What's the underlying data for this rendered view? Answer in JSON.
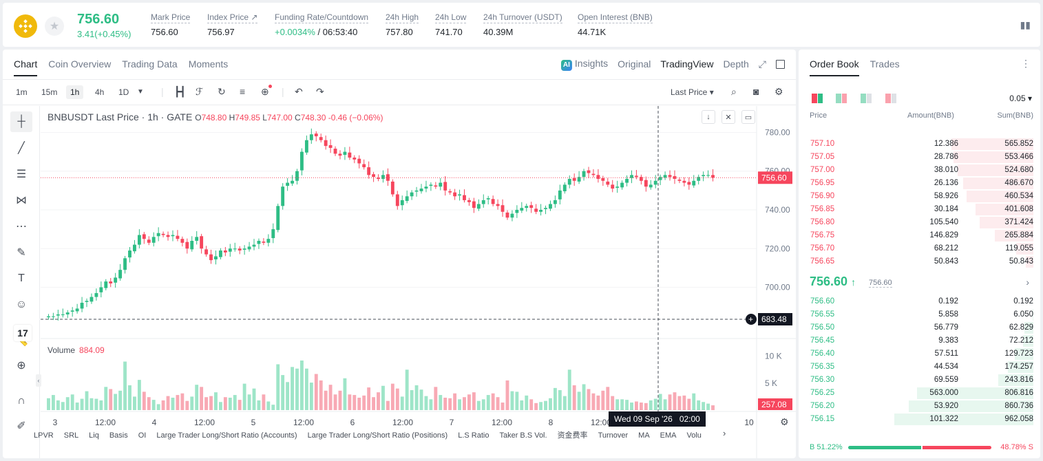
{
  "ticker": {
    "last_price": "756.60",
    "change": "3.41(+0.45%)",
    "stats": [
      {
        "label": "Mark Price",
        "value": "756.60"
      },
      {
        "label": "Index Price ↗",
        "value": "756.97"
      },
      {
        "label": "Funding Rate/Countdown",
        "value": "+0.0034%",
        "value2": " / 06:53:40"
      },
      {
        "label": "24h High",
        "value": "757.80"
      },
      {
        "label": "24h Low",
        "value": "741.70"
      },
      {
        "label": "24h Turnover (USDT)",
        "value": "40.39M"
      },
      {
        "label": "Open Interest (BNB)",
        "value": "44.71K"
      }
    ]
  },
  "chart_tabs": [
    "Chart",
    "Coin Overview",
    "Trading Data",
    "Moments"
  ],
  "chart_views": {
    "ai": "AI",
    "insights": "Insights",
    "original": "Original",
    "tradingview": "TradingView",
    "depth": "Depth"
  },
  "timeframes": [
    "1m",
    "15m",
    "1h",
    "4h",
    "1D"
  ],
  "last_price_select": "Last Price",
  "legend": {
    "symbol": "BNBUSDT Last Price · 1h · GATE",
    "o": "748.80",
    "h": "749.85",
    "l": "747.00",
    "c": "748.30",
    "chg": "-0.46 (−0.06%)"
  },
  "volume_legend": {
    "label": "Volume",
    "value": "884.09"
  },
  "crosshair": {
    "date": "Wed 09 Sep '26",
    "time": "02:00"
  },
  "indicators": [
    "LPVR",
    "SRL",
    "Liq",
    "Basis",
    "OI",
    "Large Trader Long/Short Ratio (Accounts)",
    "Large Trader Long/Short Ratio (Positions)",
    "L.S Ratio",
    "Taker B.S Vol.",
    "资金费率",
    "Turnover",
    "MA",
    "EMA",
    "Volu"
  ],
  "chart_data": {
    "type": "candlestick",
    "y_ticks": [
      "780.00",
      "760.00",
      "740.00",
      "720.00",
      "700.00"
    ],
    "ylim": [
      683.48,
      783
    ],
    "volume_ticks": [
      "10 K",
      "5 K"
    ],
    "x_ticks": [
      "3",
      "12:00",
      "4",
      "12:00",
      "5",
      "12:00",
      "6",
      "12:00",
      "7",
      "12:00",
      "8",
      "12:00",
      "10"
    ],
    "price_label": "756.60",
    "cross_price_label": "683.48",
    "volume_label": "257.08",
    "close_series": [
      685,
      685,
      686,
      686,
      687,
      688,
      689,
      692,
      693,
      695,
      697,
      700,
      703,
      702,
      705,
      709,
      715,
      719,
      722,
      727,
      725,
      723,
      726,
      728,
      727,
      726,
      727,
      725,
      723,
      720,
      724,
      726,
      720,
      717,
      714,
      716,
      719,
      718,
      720,
      720,
      719,
      720,
      721,
      722,
      724,
      723,
      725,
      730,
      742,
      752,
      754,
      755,
      760,
      770,
      776,
      779,
      778,
      776,
      773,
      772,
      769,
      768,
      770,
      767,
      766,
      764,
      762,
      758,
      757,
      756,
      758,
      755,
      748,
      742,
      745,
      747,
      749,
      750,
      751,
      752,
      753,
      752,
      754,
      750,
      749,
      747,
      748,
      745,
      744,
      741,
      743,
      745,
      746,
      743,
      742,
      739,
      736,
      738,
      740,
      741,
      742,
      741,
      739,
      740,
      741,
      743,
      745,
      750,
      753,
      756,
      755,
      757,
      760,
      759,
      758,
      756,
      755,
      753,
      751,
      752,
      754,
      756,
      758,
      757,
      755,
      752,
      753,
      755,
      757,
      758,
      757,
      756,
      755,
      754,
      753,
      755,
      757,
      758,
      758,
      756.6
    ],
    "volume_series": [
      2200,
      2800,
      1800,
      1500,
      2400,
      2900,
      1400,
      2100,
      3500,
      2200,
      2100,
      1800,
      4300,
      3900,
      3000,
      3600,
      9000,
      4600,
      2500,
      5600,
      3400,
      2400,
      1900,
      1100,
      1800,
      2600,
      2300,
      2800,
      3100,
      1700,
      2500,
      4700,
      4300,
      2400,
      2600,
      3300,
      1500,
      2400,
      2300,
      2800,
      1900,
      4900,
      2900,
      4000,
      1800,
      2900,
      1600,
      1000,
      8500,
      6500,
      5200,
      8000,
      7700,
      9200,
      7700,
      5100,
      6700,
      5500,
      3600,
      4700,
      2900,
      3600,
      5900,
      2900,
      2800,
      2300,
      2700,
      4200,
      2400,
      3300,
      4500,
      1700,
      4900,
      4000,
      2500,
      7500,
      3700,
      4600,
      3800,
      2600,
      2000,
      4300,
      2800,
      2300,
      2200,
      3100,
      2000,
      2400,
      2900,
      3300,
      1700,
      2000,
      2800,
      3100,
      2400,
      1400,
      5500,
      3500,
      3400,
      1800,
      2700,
      2000,
      1300,
      1500,
      1700,
      2200,
      4100,
      3700,
      2600,
      7500,
      4600,
      3400,
      4800,
      3900,
      3100,
      2700,
      3600,
      4300,
      2600,
      2000,
      2000,
      1900,
      1400,
      1600,
      1400,
      1300,
      1800,
      2100,
      3000,
      2000,
      2900,
      3300,
      2600,
      2700,
      2100,
      3100,
      1800,
      1500,
      1200,
      884
    ]
  },
  "orderbook": {
    "tabs": [
      "Order Book",
      "Trades"
    ],
    "precision": "0.05",
    "headers": {
      "price": "Price",
      "amount": "Amount(BNB)",
      "sum": "Sum(BNB)"
    },
    "asks": [
      {
        "price": "757.10",
        "amount": "12.386",
        "sum": "565.852"
      },
      {
        "price": "757.05",
        "amount": "28.786",
        "sum": "553.466"
      },
      {
        "price": "757.00",
        "amount": "38.010",
        "sum": "524.680"
      },
      {
        "price": "756.95",
        "amount": "26.136",
        "sum": "486.670"
      },
      {
        "price": "756.90",
        "amount": "58.926",
        "sum": "460.534"
      },
      {
        "price": "756.85",
        "amount": "30.184",
        "sum": "401.608"
      },
      {
        "price": "756.80",
        "amount": "105.540",
        "sum": "371.424"
      },
      {
        "price": "756.75",
        "amount": "146.829",
        "sum": "265.884"
      },
      {
        "price": "756.70",
        "amount": "68.212",
        "sum": "119.055"
      },
      {
        "price": "756.65",
        "amount": "50.843",
        "sum": "50.843"
      }
    ],
    "mid_price": "756.60",
    "mid_arrow": "↑",
    "mark_price": "756.60",
    "bids": [
      {
        "price": "756.60",
        "amount": "0.192",
        "sum": "0.192"
      },
      {
        "price": "756.55",
        "amount": "5.858",
        "sum": "6.050"
      },
      {
        "price": "756.50",
        "amount": "56.779",
        "sum": "62.829"
      },
      {
        "price": "756.45",
        "amount": "9.383",
        "sum": "72.212"
      },
      {
        "price": "756.40",
        "amount": "57.511",
        "sum": "129.723"
      },
      {
        "price": "756.35",
        "amount": "44.534",
        "sum": "174.257"
      },
      {
        "price": "756.30",
        "amount": "69.559",
        "sum": "243.816"
      },
      {
        "price": "756.25",
        "amount": "563.000",
        "sum": "806.816"
      },
      {
        "price": "756.20",
        "amount": "53.920",
        "sum": "860.736"
      },
      {
        "price": "756.15",
        "amount": "101.322",
        "sum": "962.058"
      }
    ],
    "buy_ratio": "51.22%",
    "sell_ratio": "48.78%",
    "buy_letter": "B",
    "sell_letter": "S"
  },
  "colors": {
    "up": "#2ebd85",
    "down": "#f6465d",
    "brand": "#f0b90b"
  }
}
